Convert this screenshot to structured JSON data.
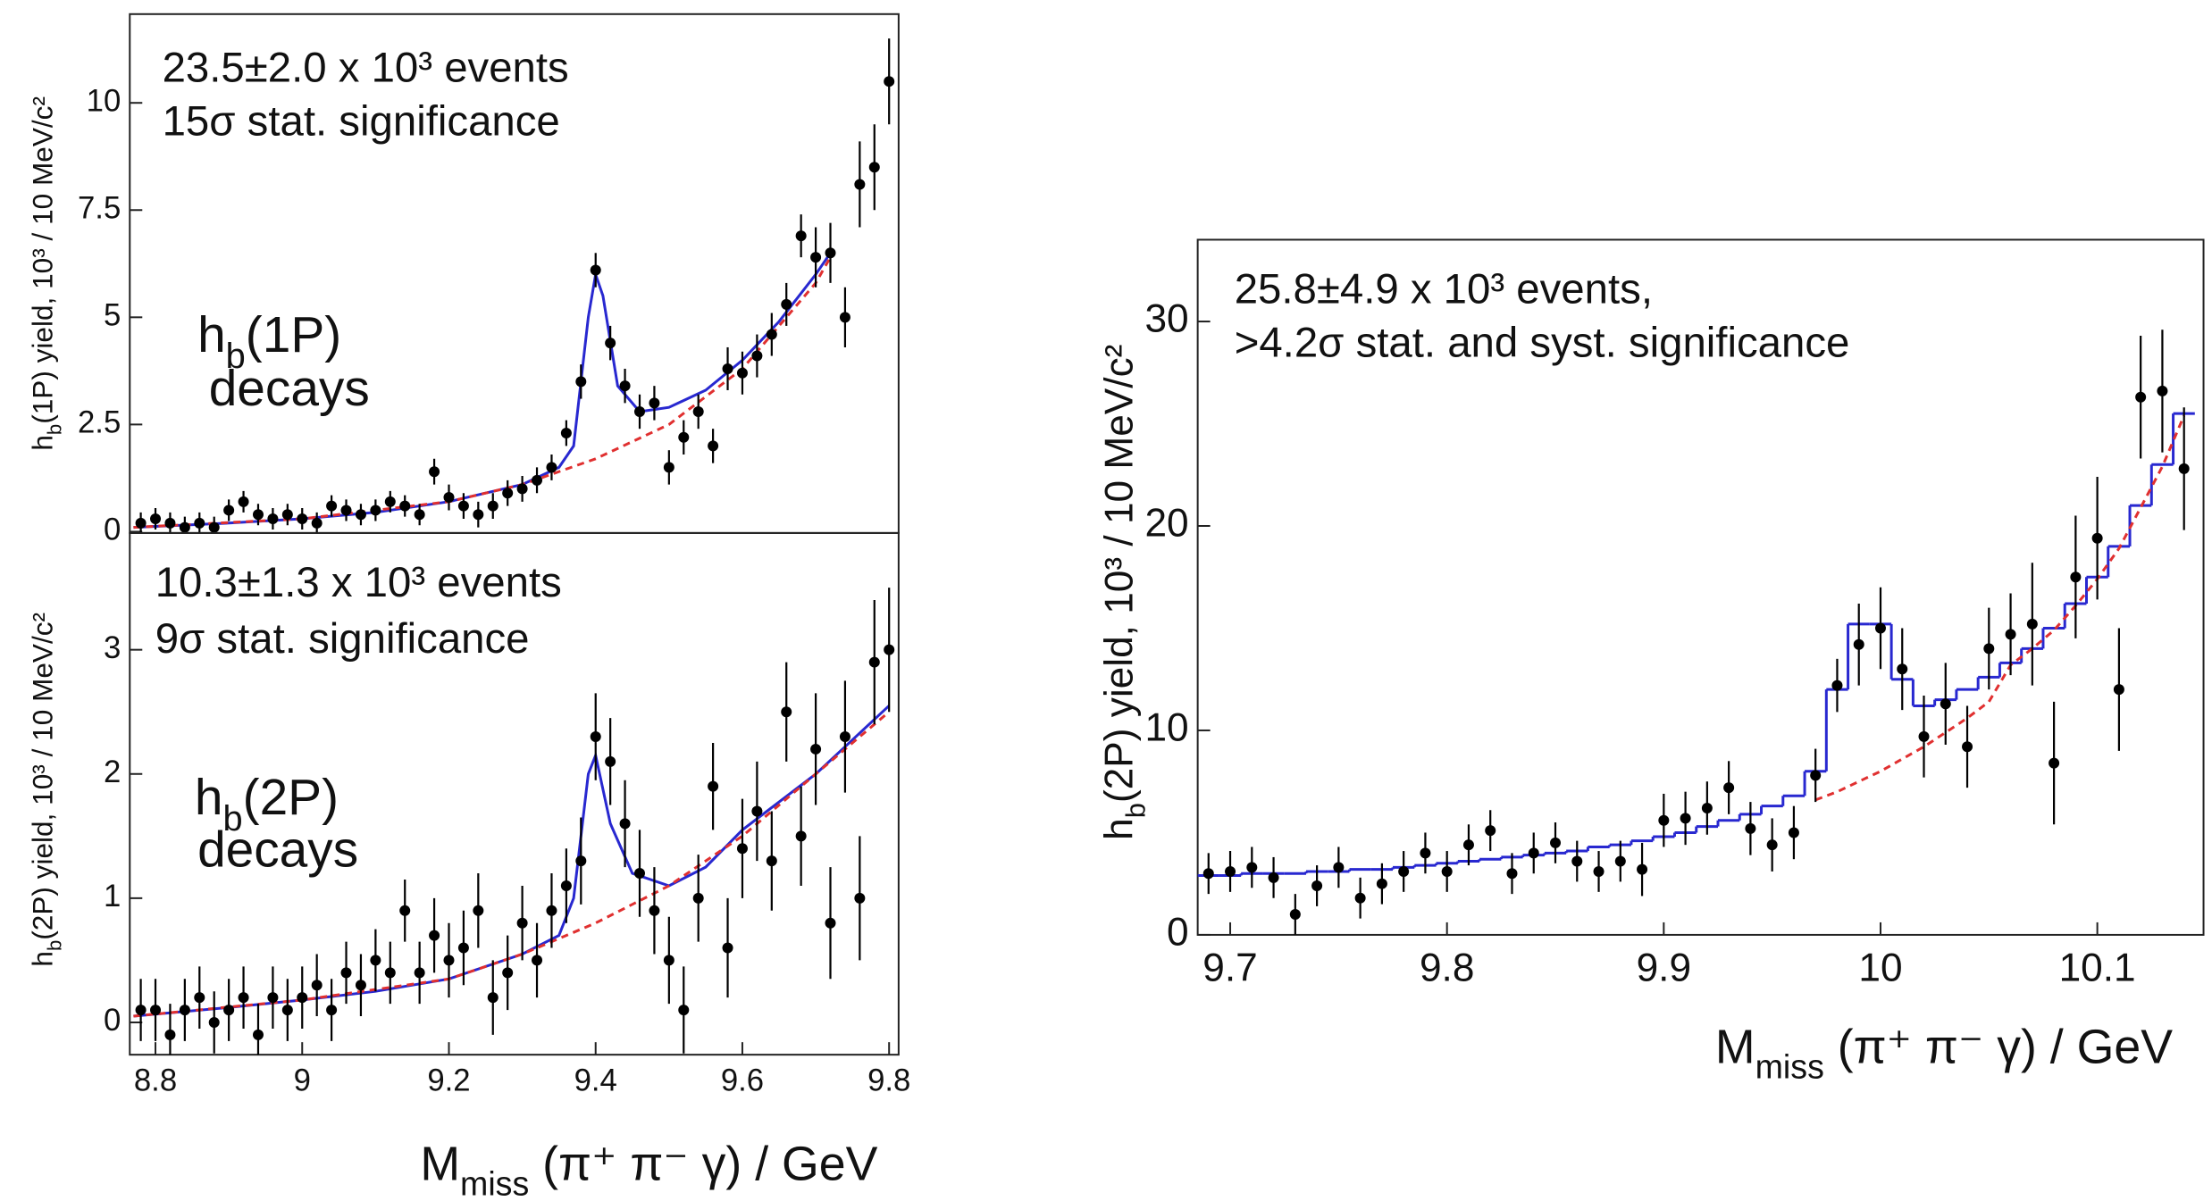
{
  "chart_data": [
    {
      "type": "scatter",
      "y_label": {
        "main": "h",
        "sub": "b",
        "rest": "(1P) yield, 10³ / 10 MeV/c²"
      },
      "annotations": [
        "23.5±2.0 x 10³ events",
        "15σ stat. significance"
      ],
      "decay_label": {
        "main": "h",
        "sub": "b",
        "rest": "(1P)"
      },
      "decay_text": "decays",
      "xlim": [
        8.765,
        9.813
      ],
      "ylim": [
        -0.03,
        12.07
      ],
      "yticks": [
        0,
        2.5,
        5,
        7.5,
        10
      ],
      "series": [
        {
          "name": "data",
          "color": "#000000",
          "x": [
            8.78,
            8.8,
            8.82,
            8.84,
            8.86,
            8.88,
            8.9,
            8.92,
            8.94,
            8.96,
            8.98,
            9,
            9.02,
            9.04,
            9.06,
            9.08,
            9.1,
            9.12,
            9.14,
            9.16,
            9.18,
            9.2,
            9.22,
            9.24,
            9.26,
            9.28,
            9.3,
            9.32,
            9.34,
            9.36,
            9.38,
            9.4,
            9.42,
            9.44,
            9.46,
            9.48,
            9.5,
            9.52,
            9.54,
            9.56,
            9.58,
            9.6,
            9.62,
            9.64,
            9.66,
            9.68,
            9.7,
            9.72,
            9.74,
            9.76,
            9.78,
            9.8
          ],
          "values": [
            0.2,
            0.3,
            0.2,
            0.1,
            0.2,
            0.1,
            0.5,
            0.7,
            0.4,
            0.3,
            0.4,
            0.3,
            0.2,
            0.6,
            0.5,
            0.4,
            0.5,
            0.7,
            0.6,
            0.4,
            1.4,
            0.8,
            0.6,
            0.4,
            0.6,
            0.9,
            1.0,
            1.2,
            1.5,
            2.3,
            3.5,
            6.1,
            4.4,
            3.4,
            2.8,
            3.0,
            1.5,
            2.2,
            2.8,
            2.0,
            3.8,
            3.7,
            4.1,
            4.6,
            5.3,
            6.9,
            6.4,
            6.5,
            5.0,
            8.1,
            8.5,
            10.5
          ],
          "errors": [
            0.25,
            0.25,
            0.25,
            0.25,
            0.25,
            0.25,
            0.25,
            0.25,
            0.25,
            0.25,
            0.25,
            0.25,
            0.25,
            0.25,
            0.25,
            0.25,
            0.25,
            0.25,
            0.25,
            0.25,
            0.3,
            0.3,
            0.3,
            0.3,
            0.3,
            0.3,
            0.3,
            0.3,
            0.3,
            0.3,
            0.4,
            0.4,
            0.4,
            0.4,
            0.4,
            0.4,
            0.4,
            0.4,
            0.4,
            0.4,
            0.5,
            0.5,
            0.5,
            0.5,
            0.5,
            0.5,
            0.7,
            0.7,
            0.7,
            1.0,
            1.0,
            1.0
          ]
        },
        {
          "name": "fit",
          "color": "#2828d0",
          "x": [
            8.77,
            8.9,
            9,
            9.1,
            9.2,
            9.3,
            9.35,
            9.37,
            9.39,
            9.4,
            9.41,
            9.43,
            9.46,
            9.5,
            9.55,
            9.6,
            9.65,
            9.7,
            9.72
          ],
          "values": [
            0.1,
            0.2,
            0.3,
            0.45,
            0.7,
            1.1,
            1.5,
            2.0,
            5.0,
            6.0,
            5.5,
            3.4,
            2.8,
            2.9,
            3.3,
            4.0,
            4.9,
            6.0,
            6.5
          ]
        },
        {
          "name": "background",
          "color": "#e03030",
          "dashed": true,
          "x": [
            8.77,
            9,
            9.2,
            9.3,
            9.4,
            9.5,
            9.6,
            9.7,
            9.72
          ],
          "values": [
            0.1,
            0.3,
            0.7,
            1.1,
            1.7,
            2.5,
            3.8,
            5.8,
            6.4
          ]
        }
      ]
    },
    {
      "type": "scatter",
      "y_label": {
        "main": "h",
        "sub": "b",
        "rest": "(2P) yield, 10³ / 10 MeV/c²"
      },
      "x_label": {
        "main": "M",
        "sub": "miss",
        "rest": " (π⁺ π⁻ γ) / GeV"
      },
      "annotations": [
        "10.3±1.3 x 10³ events",
        "9σ stat. significance"
      ],
      "decay_label": {
        "main": "h",
        "sub": "b",
        "rest": "(2P)"
      },
      "decay_text": "decays",
      "xlim": [
        8.765,
        9.813
      ],
      "xticks": [
        8.8,
        9,
        9.2,
        9.4,
        9.6,
        9.8
      ],
      "ylim": [
        -0.26,
        3.94
      ],
      "yticks": [
        0,
        1,
        2,
        3
      ],
      "series": [
        {
          "name": "data",
          "color": "#000000",
          "x": [
            8.78,
            8.8,
            8.82,
            8.84,
            8.86,
            8.88,
            8.9,
            8.92,
            8.94,
            8.96,
            8.98,
            9,
            9.02,
            9.04,
            9.06,
            9.08,
            9.1,
            9.12,
            9.14,
            9.16,
            9.18,
            9.2,
            9.22,
            9.24,
            9.26,
            9.28,
            9.3,
            9.32,
            9.34,
            9.36,
            9.38,
            9.4,
            9.42,
            9.44,
            9.46,
            9.48,
            9.5,
            9.52,
            9.54,
            9.56,
            9.58,
            9.6,
            9.62,
            9.64,
            9.66,
            9.68,
            9.7,
            9.72,
            9.74,
            9.76,
            9.78,
            9.8
          ],
          "values": [
            0.1,
            0.1,
            -0.1,
            0.1,
            0.2,
            0.0,
            0.1,
            0.2,
            -0.1,
            0.2,
            0.1,
            0.2,
            0.3,
            0.1,
            0.4,
            0.3,
            0.5,
            0.4,
            0.9,
            0.4,
            0.7,
            0.5,
            0.6,
            0.9,
            0.2,
            0.4,
            0.8,
            0.5,
            0.9,
            1.1,
            1.3,
            2.3,
            2.1,
            1.6,
            1.2,
            0.9,
            0.5,
            0.1,
            1.0,
            1.9,
            0.6,
            1.4,
            1.7,
            1.3,
            2.5,
            1.5,
            2.2,
            0.8,
            2.3,
            1.0,
            2.9,
            3.0
          ],
          "errors": [
            0.25,
            0.25,
            0.25,
            0.25,
            0.25,
            0.25,
            0.25,
            0.25,
            0.25,
            0.25,
            0.25,
            0.25,
            0.25,
            0.25,
            0.25,
            0.25,
            0.25,
            0.25,
            0.25,
            0.25,
            0.3,
            0.3,
            0.3,
            0.3,
            0.3,
            0.3,
            0.3,
            0.3,
            0.3,
            0.3,
            0.35,
            0.35,
            0.35,
            0.35,
            0.35,
            0.35,
            0.35,
            0.35,
            0.35,
            0.35,
            0.4,
            0.4,
            0.4,
            0.4,
            0.4,
            0.4,
            0.45,
            0.45,
            0.45,
            0.5,
            0.5,
            0.5
          ]
        },
        {
          "name": "fit",
          "color": "#2828d0",
          "x": [
            8.77,
            8.9,
            9,
            9.1,
            9.2,
            9.3,
            9.35,
            9.37,
            9.39,
            9.4,
            9.42,
            9.45,
            9.5,
            9.55,
            9.6,
            9.7,
            9.8
          ],
          "values": [
            0.05,
            0.12,
            0.18,
            0.25,
            0.35,
            0.55,
            0.7,
            1.0,
            2.0,
            2.15,
            1.6,
            1.2,
            1.1,
            1.25,
            1.55,
            2.0,
            2.55
          ]
        },
        {
          "name": "background",
          "color": "#e03030",
          "dashed": true,
          "x": [
            8.77,
            9,
            9.2,
            9.3,
            9.4,
            9.5,
            9.6,
            9.7,
            9.8
          ],
          "values": [
            0.05,
            0.18,
            0.35,
            0.55,
            0.8,
            1.1,
            1.5,
            2.0,
            2.5
          ]
        }
      ]
    },
    {
      "type": "scatter",
      "y_label": {
        "main": "h",
        "sub": "b",
        "rest": "(2P) yield, 10³ / 10 MeV/c²"
      },
      "x_label": {
        "main": "M",
        "sub": "miss",
        "rest": " (π⁺ π⁻ γ) / GeV"
      },
      "annotations": [
        "25.8±4.9 x 10³ events,",
        ">4.2σ stat. and syst. significance"
      ],
      "xlim": [
        9.685,
        10.149
      ],
      "xticks": [
        9.7,
        9.8,
        9.9,
        10,
        10.1
      ],
      "ylim": [
        0,
        34
      ],
      "yticks": [
        0,
        10,
        20,
        30
      ],
      "series": [
        {
          "name": "data",
          "color": "#000000",
          "x": [
            9.69,
            9.7,
            9.71,
            9.72,
            9.73,
            9.74,
            9.75,
            9.76,
            9.77,
            9.78,
            9.79,
            9.8,
            9.81,
            9.82,
            9.83,
            9.84,
            9.85,
            9.86,
            9.87,
            9.88,
            9.89,
            9.9,
            9.91,
            9.92,
            9.93,
            9.94,
            9.95,
            9.96,
            9.97,
            9.98,
            9.99,
            10,
            10.01,
            10.02,
            10.03,
            10.04,
            10.05,
            10.06,
            10.07,
            10.08,
            10.09,
            10.1,
            10.11,
            10.12,
            10.13,
            10.14
          ],
          "values": [
            3.0,
            3.1,
            3.3,
            2.8,
            1.0,
            2.4,
            3.3,
            1.8,
            2.5,
            3.1,
            4.0,
            3.1,
            4.4,
            5.1,
            3.0,
            4.0,
            4.5,
            3.6,
            3.1,
            3.6,
            3.2,
            5.6,
            5.7,
            6.2,
            7.2,
            5.2,
            4.4,
            5.0,
            7.8,
            12.2,
            14.2,
            15.0,
            13.0,
            9.7,
            11.3,
            9.2,
            14.0,
            14.7,
            15.2,
            8.4,
            17.5,
            19.4,
            12.0,
            26.3,
            26.6,
            22.8
          ],
          "errors": [
            1.0,
            1.0,
            1.0,
            1.0,
            1.0,
            1.0,
            1.0,
            1.0,
            1.0,
            1.0,
            1.0,
            1.0,
            1.0,
            1.0,
            1.0,
            1.0,
            1.0,
            1.0,
            1.0,
            1.0,
            1.3,
            1.3,
            1.3,
            1.3,
            1.3,
            1.3,
            1.3,
            1.3,
            1.3,
            1.3,
            2.0,
            2.0,
            2.0,
            2.0,
            2.0,
            2.0,
            2.0,
            2.0,
            3.0,
            3.0,
            3.0,
            3.0,
            3.0,
            3.0,
            3.0,
            3.0
          ]
        },
        {
          "name": "fit",
          "color": "#2828d0",
          "step": true,
          "x": [
            9.69,
            9.7,
            9.71,
            9.72,
            9.73,
            9.74,
            9.75,
            9.76,
            9.77,
            9.78,
            9.79,
            9.8,
            9.81,
            9.82,
            9.83,
            9.84,
            9.85,
            9.86,
            9.87,
            9.88,
            9.89,
            9.9,
            9.91,
            9.92,
            9.93,
            9.94,
            9.95,
            9.96,
            9.97,
            9.98,
            9.99,
            10,
            10.01,
            10.02,
            10.03,
            10.04,
            10.05,
            10.06,
            10.07,
            10.08,
            10.09,
            10.1,
            10.11,
            10.12,
            10.13,
            10.14
          ],
          "values": [
            2.9,
            2.9,
            3.0,
            3.0,
            3.0,
            3.1,
            3.1,
            3.2,
            3.2,
            3.3,
            3.4,
            3.5,
            3.6,
            3.7,
            3.8,
            3.9,
            4.0,
            4.1,
            4.3,
            4.4,
            4.6,
            4.8,
            5.0,
            5.3,
            5.6,
            5.9,
            6.3,
            6.8,
            8.0,
            12.0,
            15.2,
            15.2,
            12.5,
            11.2,
            11.5,
            12.0,
            12.6,
            13.3,
            14.0,
            15.0,
            16.2,
            17.5,
            19.0,
            21.0,
            23.0,
            25.5
          ]
        },
        {
          "name": "background",
          "color": "#e03030",
          "dashed": true,
          "x": [
            9.69,
            9.7,
            9.71,
            9.72,
            9.73,
            9.74,
            9.75,
            9.76,
            9.77,
            9.78,
            9.79,
            9.8,
            9.81,
            9.82,
            9.83,
            9.84,
            9.85,
            9.86,
            9.87,
            9.88,
            9.89,
            9.9,
            9.91,
            9.92,
            9.93,
            9.94,
            9.95,
            9.96,
            9.97,
            9.98,
            9.99,
            10,
            10.01,
            10.02,
            10.03,
            10.04,
            10.05,
            10.06,
            10.07,
            10.08,
            10.09,
            10.1,
            10.11,
            10.12,
            10.13,
            10.14
          ],
          "values": [
            null,
            null,
            null,
            null,
            null,
            null,
            null,
            null,
            null,
            null,
            null,
            null,
            null,
            null,
            null,
            null,
            null,
            null,
            null,
            null,
            null,
            null,
            null,
            null,
            null,
            null,
            null,
            null,
            6.6,
            7.0,
            7.5,
            8.0,
            8.6,
            9.2,
            9.9,
            10.6,
            11.4,
            13.2,
            14.0,
            14.9,
            16.1,
            17.4,
            18.9,
            20.9,
            22.9,
            25.4
          ]
        }
      ]
    }
  ]
}
